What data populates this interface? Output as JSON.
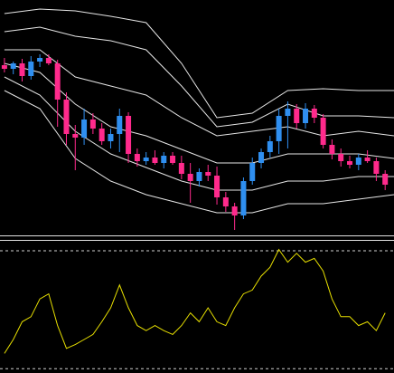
{
  "chart_data": [
    {
      "type": "candlestick",
      "xlim": [
        -0.5,
        44
      ],
      "ylim": [
        0,
        260
      ],
      "up_color": "#2f8ff0",
      "down_color": "#ff2a8c",
      "open": [
        188,
        184,
        190,
        176,
        192,
        196,
        190,
        150,
        112,
        108,
        128,
        118,
        104,
        112,
        132,
        90,
        82,
        86,
        80,
        88,
        80,
        68,
        60,
        70,
        66,
        42,
        32,
        22,
        60,
        80,
        92,
        104,
        132,
        140,
        124,
        140,
        130,
        100,
        90,
        82,
        78,
        86,
        82,
        68
      ],
      "high": [
        196,
        192,
        195,
        198,
        200,
        200,
        194,
        158,
        122,
        140,
        135,
        124,
        118,
        140,
        136,
        96,
        92,
        94,
        92,
        92,
        88,
        80,
        74,
        78,
        76,
        48,
        36,
        64,
        86,
        96,
        110,
        140,
        148,
        145,
        146,
        144,
        134,
        106,
        96,
        88,
        90,
        94,
        86,
        72
      ],
      "low": [
        180,
        178,
        170,
        172,
        186,
        188,
        120,
        100,
        72,
        100,
        112,
        100,
        96,
        92,
        80,
        76,
        78,
        78,
        74,
        78,
        62,
        36,
        54,
        60,
        34,
        26,
        6,
        18,
        56,
        74,
        86,
        90,
        96,
        118,
        118,
        124,
        96,
        84,
        76,
        74,
        72,
        80,
        60,
        50
      ],
      "close": [
        184,
        190,
        176,
        192,
        196,
        190,
        150,
        112,
        108,
        128,
        118,
        104,
        112,
        132,
        90,
        82,
        86,
        80,
        88,
        80,
        68,
        60,
        70,
        66,
        42,
        32,
        22,
        60,
        80,
        92,
        104,
        132,
        140,
        124,
        140,
        130,
        100,
        90,
        82,
        78,
        86,
        82,
        68,
        56
      ],
      "bands": {
        "x": [
          0,
          4,
          8,
          12,
          16,
          20,
          24,
          28,
          32,
          36,
          40,
          44
        ],
        "series": [
          {
            "color": "#e6e6e6",
            "values": [
              245,
              250,
              248,
              242,
              235,
              190,
              130,
              135,
              160,
              162,
              160,
              160
            ]
          },
          {
            "color": "#e6e6e6",
            "values": [
              225,
              230,
              220,
              215,
              205,
              165,
              120,
              125,
              145,
              132,
              132,
              130
            ]
          },
          {
            "color": "#e6e6e6",
            "values": [
              205,
              205,
              175,
              165,
              155,
              130,
              110,
              115,
              120,
              110,
              115,
              110
            ]
          },
          {
            "color": "#e6e6e6",
            "values": [
              190,
              180,
              145,
              120,
              110,
              95,
              80,
              80,
              90,
              90,
              90,
              85
            ]
          },
          {
            "color": "#e6e6e6",
            "values": [
              175,
              155,
              115,
              90,
              75,
              60,
              50,
              50,
              60,
              60,
              65,
              65
            ]
          },
          {
            "color": "#e6e6e6",
            "values": [
              160,
              140,
              85,
              60,
              45,
              35,
              25,
              25,
              35,
              35,
              40,
              45
            ]
          }
        ]
      }
    },
    {
      "type": "line",
      "xlim": [
        -0.5,
        44
      ],
      "ylim": [
        0,
        100
      ],
      "color": "#e8e000",
      "levels": [
        95,
        2
      ],
      "level_color": "#cfcfcf",
      "values": [
        14,
        25,
        39,
        43,
        57,
        61,
        36,
        18,
        21,
        25,
        29,
        39,
        50,
        68,
        50,
        36,
        32,
        36,
        32,
        29,
        36,
        46,
        39,
        50,
        39,
        36,
        50,
        61,
        64,
        75,
        82,
        96,
        86,
        93,
        86,
        89,
        79,
        57,
        43,
        43,
        36,
        39,
        32,
        46
      ]
    }
  ]
}
